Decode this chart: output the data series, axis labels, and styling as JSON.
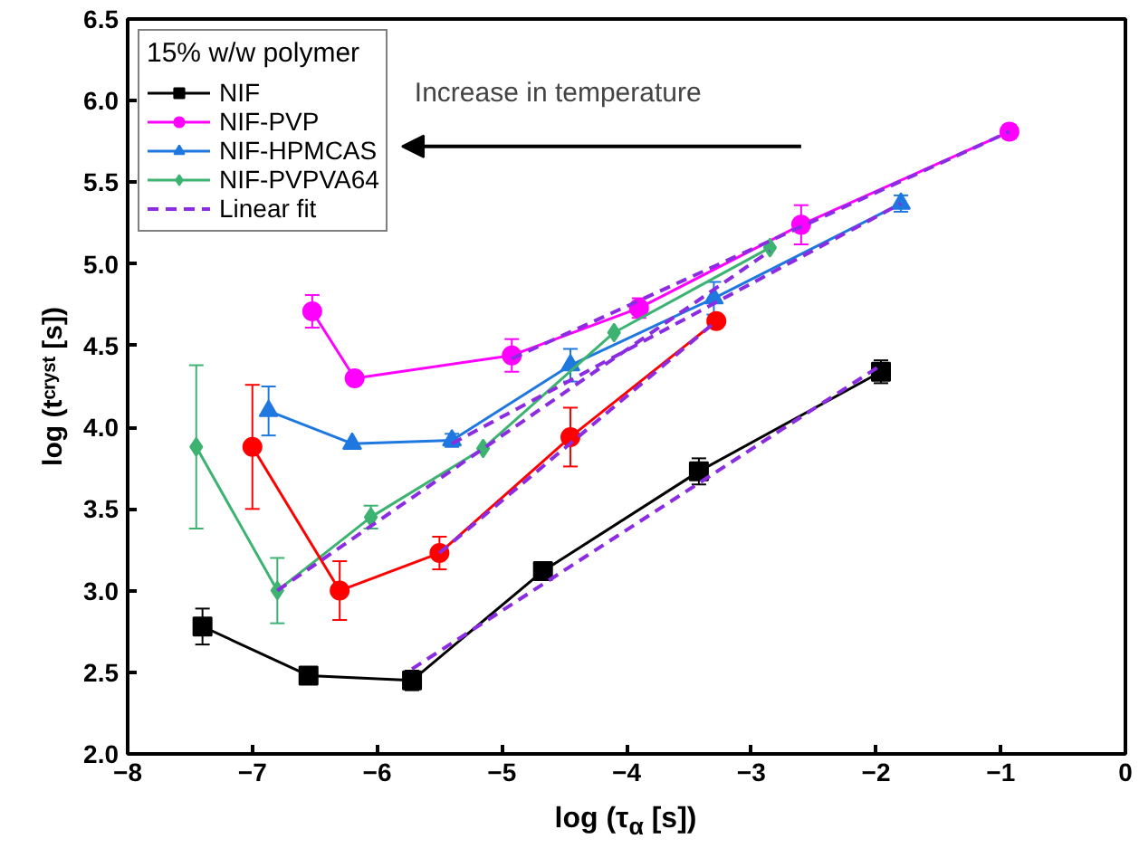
{
  "chart_data": {
    "type": "line",
    "xlabel": "log (τ$_{α}$ [s])",
    "ylabel": "log (tᶜʳʸˢᵗ [s])",
    "legend_title": "15% w/w polymer",
    "legend": "top left",
    "grid": false,
    "xlim": [
      -8,
      0
    ],
    "xticks": [
      -8,
      -7,
      -6,
      -5,
      -4,
      -3,
      -2,
      -1,
      0
    ],
    "ylim": [
      2,
      6.5
    ],
    "yticks": [
      {
        "value": 2,
        "label": "2.0"
      },
      {
        "value": 2.5,
        "label": "2.5"
      },
      {
        "value": 3,
        "label": "3.0"
      },
      {
        "value": 3.5,
        "label": "3.5"
      },
      {
        "value": 4,
        "label": "4.0"
      },
      {
        "value": 4.5,
        "label": "4.5"
      },
      {
        "value": 5,
        "label": "5.0"
      },
      {
        "value": 5.5,
        "label": "5.5"
      },
      {
        "value": 6,
        "label": "6.0"
      },
      {
        "value": 6.5,
        "label": "6.5"
      }
    ],
    "annotations": [
      "Increase in temperature"
    ],
    "series": [
      {
        "name": "NIF",
        "color": "#000000",
        "marker": "square",
        "x": [
          -7.4,
          -6.55,
          -5.72,
          -4.67,
          -3.42,
          -1.96
        ],
        "values": [
          2.78,
          2.48,
          2.45,
          3.12,
          3.73,
          4.34
        ],
        "errors": [
          0.11,
          null,
          0.06,
          0.04,
          0.08,
          0.07
        ]
      },
      {
        "name": "NIF-PVP",
        "color": "#ff00ff",
        "marker": "circle",
        "x": [
          -6.52,
          -6.18,
          -4.92,
          -3.9,
          -2.6,
          -0.93
        ],
        "values": [
          4.71,
          4.3,
          4.44,
          4.73,
          5.24,
          5.81
        ],
        "errors": [
          0.1,
          null,
          0.1,
          0.06,
          0.12,
          0.04
        ]
      },
      {
        "name": "NIF-HPMCAS",
        "color": "#1f77e0",
        "marker": "triangle",
        "x": [
          -6.87,
          -6.2,
          -5.4,
          -4.45,
          -3.3,
          -1.8
        ],
        "values": [
          4.1,
          3.9,
          3.92,
          4.38,
          4.79,
          5.37
        ],
        "errors": [
          0.15,
          null,
          0.04,
          0.1,
          0.1,
          0.05
        ]
      },
      {
        "name": "NIF-PVPVA64",
        "color": "#3cb371",
        "marker": "diamond",
        "x": [
          -7.45,
          -6.8,
          -6.05,
          -5.15,
          -4.1,
          -2.85
        ],
        "values": [
          3.88,
          3.0,
          3.45,
          3.87,
          4.58,
          5.1
        ],
        "errors": [
          0.5,
          0.2,
          0.07,
          null,
          null,
          null
        ]
      },
      {
        "color": "#ff0000",
        "marker": "circle",
        "x": [
          -7.0,
          -6.3,
          -5.5,
          -4.45,
          -3.28
        ],
        "values": [
          3.88,
          3.0,
          3.23,
          3.94,
          4.65
        ],
        "errors": [
          0.38,
          0.18,
          0.1,
          0.18,
          null
        ]
      },
      {
        "name": "Linear fit",
        "color": "#8b2be2",
        "marker": "none",
        "line_style": "dashed",
        "x": [
          -5.72,
          -1.96
        ],
        "values": [
          2.52,
          4.38
        ]
      },
      {
        "color": "#8b2be2",
        "marker": "none",
        "line_style": "dashed",
        "x": [
          -4.92,
          -0.93
        ],
        "values": [
          4.42,
          5.81
        ]
      },
      {
        "color": "#8b2be2",
        "marker": "none",
        "line_style": "dashed",
        "x": [
          -5.4,
          -1.8
        ],
        "values": [
          3.9,
          5.37
        ]
      },
      {
        "color": "#8b2be2",
        "marker": "none",
        "line_style": "dashed",
        "x": [
          -6.8,
          -2.85
        ],
        "values": [
          3.0,
          5.08
        ]
      },
      {
        "color": "#8b2be2",
        "marker": "none",
        "line_style": "dashed",
        "x": [
          -5.5,
          -3.28
        ],
        "values": [
          3.23,
          4.65
        ]
      }
    ]
  }
}
